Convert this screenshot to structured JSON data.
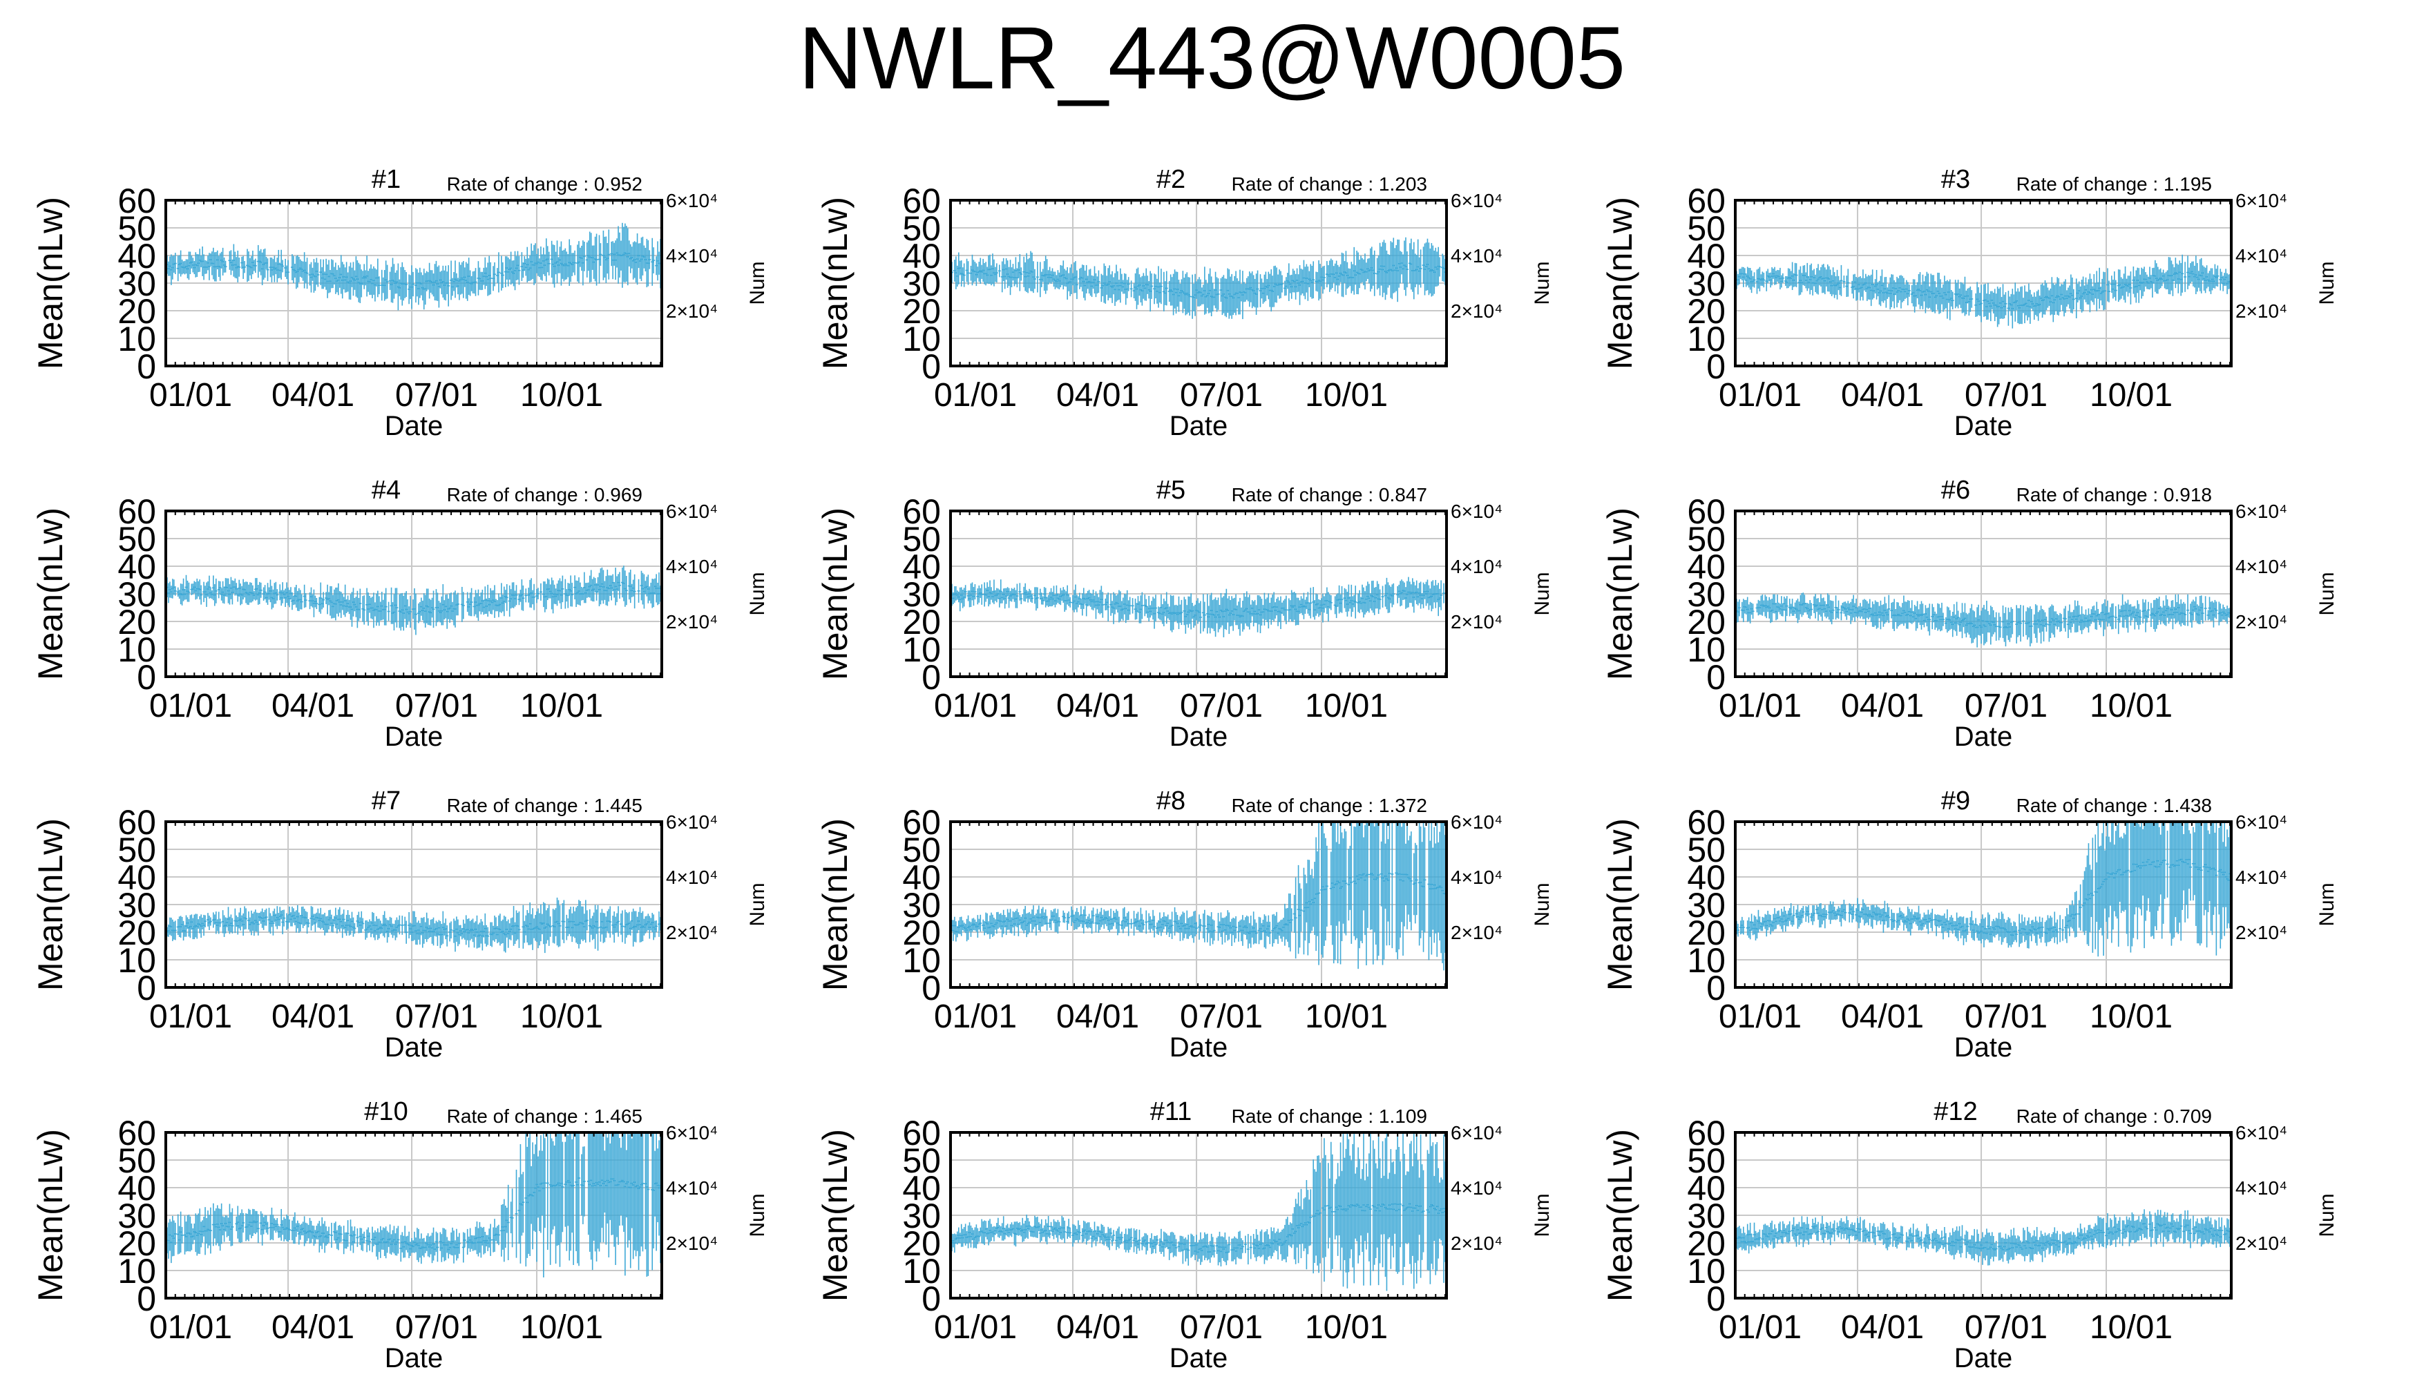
{
  "title": "NWLR_443@W0005",
  "colors": {
    "series": "#3fa9d6",
    "grid": "#c8c8c8",
    "axis": "#000000"
  },
  "chart_data": [
    {
      "type": "line",
      "title": "#1",
      "annotation": "Rate of change : 0.952",
      "xlabel": "Date",
      "ylabel": "Mean(nLw)",
      "y2label": "Num",
      "ylim": [
        0,
        60
      ],
      "yticks": [
        "0",
        "10",
        "20",
        "30",
        "40",
        "50",
        "60"
      ],
      "y2lim": [
        0,
        60000
      ],
      "y2ticks": [
        {
          "value": 20000,
          "label": "2×10⁴"
        },
        {
          "value": 40000,
          "label": "4×10⁴"
        },
        {
          "value": 60000,
          "label": "6×10⁴"
        }
      ],
      "xticks": [
        "01/01",
        "04/01",
        "07/01",
        "10/01"
      ],
      "xtick_days": [
        0,
        90,
        181,
        273
      ],
      "days": [
        0,
        30,
        60,
        90,
        120,
        150,
        181,
        212,
        243,
        273,
        304,
        334,
        364
      ],
      "mean": [
        36,
        37,
        37,
        35,
        32,
        31,
        29,
        30,
        33,
        37,
        38,
        40,
        37
      ],
      "spread": [
        4,
        4,
        4,
        4,
        5,
        5,
        6,
        5,
        5,
        5,
        6,
        8,
        6
      ]
    },
    {
      "type": "line",
      "title": "#2",
      "annotation": "Rate of change : 1.203",
      "xlabel": "Date",
      "ylabel": "Mean(nLw)",
      "y2label": "Num",
      "ylim": [
        0,
        60
      ],
      "yticks": [
        "0",
        "10",
        "20",
        "30",
        "40",
        "50",
        "60"
      ],
      "y2lim": [
        0,
        60000
      ],
      "y2ticks": [
        {
          "value": 20000,
          "label": "2×10⁴"
        },
        {
          "value": 40000,
          "label": "4×10⁴"
        },
        {
          "value": 60000,
          "label": "6×10⁴"
        }
      ],
      "xticks": [
        "01/01",
        "04/01",
        "07/01",
        "10/01"
      ],
      "xtick_days": [
        0,
        90,
        181,
        273
      ],
      "days": [
        0,
        30,
        60,
        90,
        120,
        150,
        181,
        212,
        243,
        273,
        304,
        334,
        364
      ],
      "mean": [
        34,
        34,
        33,
        31,
        29,
        28,
        26,
        26,
        29,
        32,
        34,
        36,
        35
      ],
      "spread": [
        4,
        4,
        5,
        4,
        5,
        5,
        6,
        6,
        5,
        5,
        6,
        8,
        6
      ]
    },
    {
      "type": "line",
      "title": "#3",
      "annotation": "Rate of change : 1.195",
      "xlabel": "Date",
      "ylabel": "Mean(nLw)",
      "y2label": "Num",
      "ylim": [
        0,
        60
      ],
      "yticks": [
        "0",
        "10",
        "20",
        "30",
        "40",
        "50",
        "60"
      ],
      "y2lim": [
        0,
        60000
      ],
      "y2ticks": [
        {
          "value": 20000,
          "label": "2×10⁴"
        },
        {
          "value": 40000,
          "label": "4×10⁴"
        },
        {
          "value": 60000,
          "label": "6×10⁴"
        }
      ],
      "xticks": [
        "01/01",
        "04/01",
        "07/01",
        "10/01"
      ],
      "xtick_days": [
        0,
        90,
        181,
        273
      ],
      "days": [
        0,
        30,
        60,
        90,
        120,
        150,
        181,
        212,
        243,
        273,
        304,
        334,
        364
      ],
      "mean": [
        32,
        32,
        31,
        29,
        27,
        26,
        23,
        22,
        25,
        28,
        31,
        33,
        31
      ],
      "spread": [
        3,
        3,
        4,
        4,
        4,
        5,
        5,
        5,
        5,
        5,
        4,
        5,
        4
      ]
    },
    {
      "type": "line",
      "title": "#4",
      "annotation": "Rate of change : 0.969",
      "xlabel": "Date",
      "ylabel": "Mean(nLw)",
      "y2label": "Num",
      "ylim": [
        0,
        60
      ],
      "yticks": [
        "0",
        "10",
        "20",
        "30",
        "40",
        "50",
        "60"
      ],
      "y2lim": [
        0,
        60000
      ],
      "y2ticks": [
        {
          "value": 20000,
          "label": "2×10⁴"
        },
        {
          "value": 40000,
          "label": "4×10⁴"
        },
        {
          "value": 60000,
          "label": "6×10⁴"
        }
      ],
      "xticks": [
        "01/01",
        "04/01",
        "07/01",
        "10/01"
      ],
      "xtick_days": [
        0,
        90,
        181,
        273
      ],
      "days": [
        0,
        30,
        60,
        90,
        120,
        150,
        181,
        212,
        243,
        273,
        304,
        334,
        364
      ],
      "mean": [
        31,
        31,
        31,
        29,
        27,
        25,
        24,
        25,
        27,
        30,
        31,
        33,
        31
      ],
      "spread": [
        3,
        3,
        3,
        3,
        4,
        5,
        5,
        5,
        4,
        4,
        4,
        5,
        4
      ]
    },
    {
      "type": "line",
      "title": "#5",
      "annotation": "Rate of change : 0.847",
      "xlabel": "Date",
      "ylabel": "Mean(nLw)",
      "y2label": "Num",
      "ylim": [
        0,
        60
      ],
      "yticks": [
        "0",
        "10",
        "20",
        "30",
        "40",
        "50",
        "60"
      ],
      "y2lim": [
        0,
        60000
      ],
      "y2ticks": [
        {
          "value": 20000,
          "label": "2×10⁴"
        },
        {
          "value": 40000,
          "label": "4×10⁴"
        },
        {
          "value": 60000,
          "label": "6×10⁴"
        }
      ],
      "xticks": [
        "01/01",
        "04/01",
        "07/01",
        "10/01"
      ],
      "xtick_days": [
        0,
        90,
        181,
        273
      ],
      "days": [
        0,
        30,
        60,
        90,
        120,
        150,
        181,
        212,
        243,
        273,
        304,
        334,
        364
      ],
      "mean": [
        29,
        30,
        29,
        28,
        26,
        24,
        23,
        23,
        24,
        26,
        28,
        30,
        29
      ],
      "spread": [
        3,
        3,
        3,
        3,
        4,
        4,
        5,
        5,
        4,
        4,
        4,
        4,
        4
      ]
    },
    {
      "type": "line",
      "title": "#6",
      "annotation": "Rate of change : 0.918",
      "xlabel": "Date",
      "ylabel": "Mean(nLw)",
      "y2label": "Num",
      "ylim": [
        0,
        60
      ],
      "yticks": [
        "0",
        "10",
        "20",
        "30",
        "40",
        "50",
        "60"
      ],
      "y2lim": [
        0,
        60000
      ],
      "y2ticks": [
        {
          "value": 20000,
          "label": "2×10⁴"
        },
        {
          "value": 40000,
          "label": "4×10⁴"
        },
        {
          "value": 60000,
          "label": "6×10⁴"
        }
      ],
      "xticks": [
        "01/01",
        "04/01",
        "07/01",
        "10/01"
      ],
      "xtick_days": [
        0,
        90,
        181,
        273
      ],
      "days": [
        0,
        30,
        60,
        90,
        120,
        150,
        181,
        212,
        243,
        273,
        304,
        334,
        364
      ],
      "mean": [
        24,
        25,
        25,
        24,
        23,
        21,
        19,
        19,
        20,
        22,
        23,
        24,
        23
      ],
      "spread": [
        3,
        3,
        3,
        3,
        4,
        4,
        5,
        5,
        4,
        4,
        4,
        4,
        3
      ]
    },
    {
      "type": "line",
      "title": "#7",
      "annotation": "Rate of change : 1.445",
      "xlabel": "Date",
      "ylabel": "Mean(nLw)",
      "y2label": "Num",
      "ylim": [
        0,
        60
      ],
      "yticks": [
        "0",
        "10",
        "20",
        "30",
        "40",
        "50",
        "60"
      ],
      "y2lim": [
        0,
        60000
      ],
      "y2ticks": [
        {
          "value": 20000,
          "label": "2×10⁴"
        },
        {
          "value": 40000,
          "label": "4×10⁴"
        },
        {
          "value": 60000,
          "label": "6×10⁴"
        }
      ],
      "xticks": [
        "01/01",
        "04/01",
        "07/01",
        "10/01"
      ],
      "xtick_days": [
        0,
        90,
        181,
        273
      ],
      "days": [
        0,
        30,
        60,
        90,
        120,
        150,
        181,
        212,
        243,
        273,
        304,
        334,
        364
      ],
      "mean": [
        21,
        23,
        24,
        25,
        24,
        22,
        21,
        20,
        20,
        22,
        23,
        23,
        22
      ],
      "spread": [
        3,
        3,
        3,
        3,
        3,
        3,
        4,
        4,
        4,
        6,
        6,
        5,
        4
      ]
    },
    {
      "type": "line",
      "title": "#8",
      "annotation": "Rate of change : 1.372",
      "xlabel": "Date",
      "ylabel": "Mean(nLw)",
      "y2label": "Num",
      "ylim": [
        0,
        60
      ],
      "yticks": [
        "0",
        "10",
        "20",
        "30",
        "40",
        "50",
        "60"
      ],
      "y2lim": [
        0,
        60000
      ],
      "y2ticks": [
        {
          "value": 20000,
          "label": "2×10⁴"
        },
        {
          "value": 40000,
          "label": "4×10⁴"
        },
        {
          "value": 60000,
          "label": "6×10⁴"
        }
      ],
      "xticks": [
        "01/01",
        "04/01",
        "07/01",
        "10/01"
      ],
      "xtick_days": [
        0,
        90,
        181,
        273
      ],
      "days": [
        0,
        30,
        60,
        90,
        120,
        150,
        181,
        212,
        243,
        273,
        304,
        334,
        364
      ],
      "mean": [
        21,
        23,
        24,
        25,
        24,
        23,
        22,
        21,
        21,
        35,
        40,
        40,
        35
      ],
      "spread": [
        3,
        3,
        3,
        3,
        3,
        3,
        4,
        4,
        4,
        20,
        22,
        22,
        20
      ]
    },
    {
      "type": "line",
      "title": "#9",
      "annotation": "Rate of change : 1.438",
      "xlabel": "Date",
      "ylabel": "Mean(nLw)",
      "y2label": "Num",
      "ylim": [
        0,
        60
      ],
      "yticks": [
        "0",
        "10",
        "20",
        "30",
        "40",
        "50",
        "60"
      ],
      "y2lim": [
        0,
        60000
      ],
      "y2ticks": [
        {
          "value": 20000,
          "label": "2×10⁴"
        },
        {
          "value": 40000,
          "label": "4×10⁴"
        },
        {
          "value": 60000,
          "label": "6×10⁴"
        }
      ],
      "xticks": [
        "01/01",
        "04/01",
        "07/01",
        "10/01"
      ],
      "xtick_days": [
        0,
        90,
        181,
        273
      ],
      "days": [
        0,
        30,
        60,
        90,
        120,
        150,
        181,
        212,
        243,
        273,
        304,
        334,
        364
      ],
      "mean": [
        21,
        24,
        27,
        27,
        25,
        23,
        21,
        20,
        22,
        40,
        45,
        45,
        40
      ],
      "spread": [
        3,
        3,
        3,
        3,
        3,
        3,
        4,
        4,
        4,
        20,
        20,
        20,
        20
      ]
    },
    {
      "type": "line",
      "title": "#10",
      "annotation": "Rate of change : 1.465",
      "xlabel": "Date",
      "ylabel": "Mean(nLw)",
      "y2label": "Num",
      "ylim": [
        0,
        60
      ],
      "yticks": [
        "0",
        "10",
        "20",
        "30",
        "40",
        "50",
        "60"
      ],
      "y2lim": [
        0,
        60000
      ],
      "y2ticks": [
        {
          "value": 20000,
          "label": "2×10⁴"
        },
        {
          "value": 40000,
          "label": "4×10⁴"
        },
        {
          "value": 60000,
          "label": "6×10⁴"
        }
      ],
      "xticks": [
        "01/01",
        "04/01",
        "07/01",
        "10/01"
      ],
      "xtick_days": [
        0,
        90,
        181,
        273
      ],
      "days": [
        0,
        30,
        60,
        90,
        120,
        150,
        181,
        212,
        243,
        273,
        304,
        334,
        364
      ],
      "mean": [
        21,
        25,
        27,
        25,
        23,
        21,
        19,
        19,
        22,
        40,
        42,
        42,
        40
      ],
      "spread": [
        5,
        6,
        4,
        4,
        4,
        4,
        4,
        4,
        4,
        22,
        22,
        22,
        22
      ]
    },
    {
      "type": "line",
      "title": "#11",
      "annotation": "Rate of change : 1.109",
      "xlabel": "Date",
      "ylabel": "Mean(nLw)",
      "y2label": "Num",
      "ylim": [
        0,
        60
      ],
      "yticks": [
        "0",
        "10",
        "20",
        "30",
        "40",
        "50",
        "60"
      ],
      "y2lim": [
        0,
        60000
      ],
      "y2ticks": [
        {
          "value": 20000,
          "label": "2×10⁴"
        },
        {
          "value": 40000,
          "label": "4×10⁴"
        },
        {
          "value": 60000,
          "label": "6×10⁴"
        }
      ],
      "xticks": [
        "01/01",
        "04/01",
        "07/01",
        "10/01"
      ],
      "xtick_days": [
        0,
        90,
        181,
        273
      ],
      "days": [
        0,
        30,
        60,
        90,
        120,
        150,
        181,
        212,
        243,
        273,
        304,
        334,
        364
      ],
      "mean": [
        21,
        24,
        25,
        24,
        22,
        20,
        18,
        18,
        20,
        32,
        33,
        33,
        32
      ],
      "spread": [
        3,
        3,
        3,
        3,
        3,
        3,
        4,
        4,
        4,
        18,
        20,
        20,
        18
      ]
    },
    {
      "type": "line",
      "title": "#12",
      "annotation": "Rate of change : 0.709",
      "xlabel": "Date",
      "ylabel": "Mean(nLw)",
      "y2label": "Num",
      "ylim": [
        0,
        60
      ],
      "yticks": [
        "0",
        "10",
        "20",
        "30",
        "40",
        "50",
        "60"
      ],
      "y2lim": [
        0,
        60000
      ],
      "y2ticks": [
        {
          "value": 20000,
          "label": "2×10⁴"
        },
        {
          "value": 40000,
          "label": "4×10⁴"
        },
        {
          "value": 60000,
          "label": "6×10⁴"
        }
      ],
      "xticks": [
        "01/01",
        "04/01",
        "07/01",
        "10/01"
      ],
      "xtick_days": [
        0,
        90,
        181,
        273
      ],
      "days": [
        0,
        30,
        60,
        90,
        120,
        150,
        181,
        212,
        243,
        273,
        304,
        334,
        364
      ],
      "mean": [
        21,
        23,
        25,
        24,
        22,
        21,
        19,
        19,
        20,
        24,
        26,
        25,
        23
      ],
      "spread": [
        3,
        3,
        3,
        3,
        3,
        3,
        4,
        4,
        3,
        4,
        4,
        4,
        3
      ]
    }
  ]
}
